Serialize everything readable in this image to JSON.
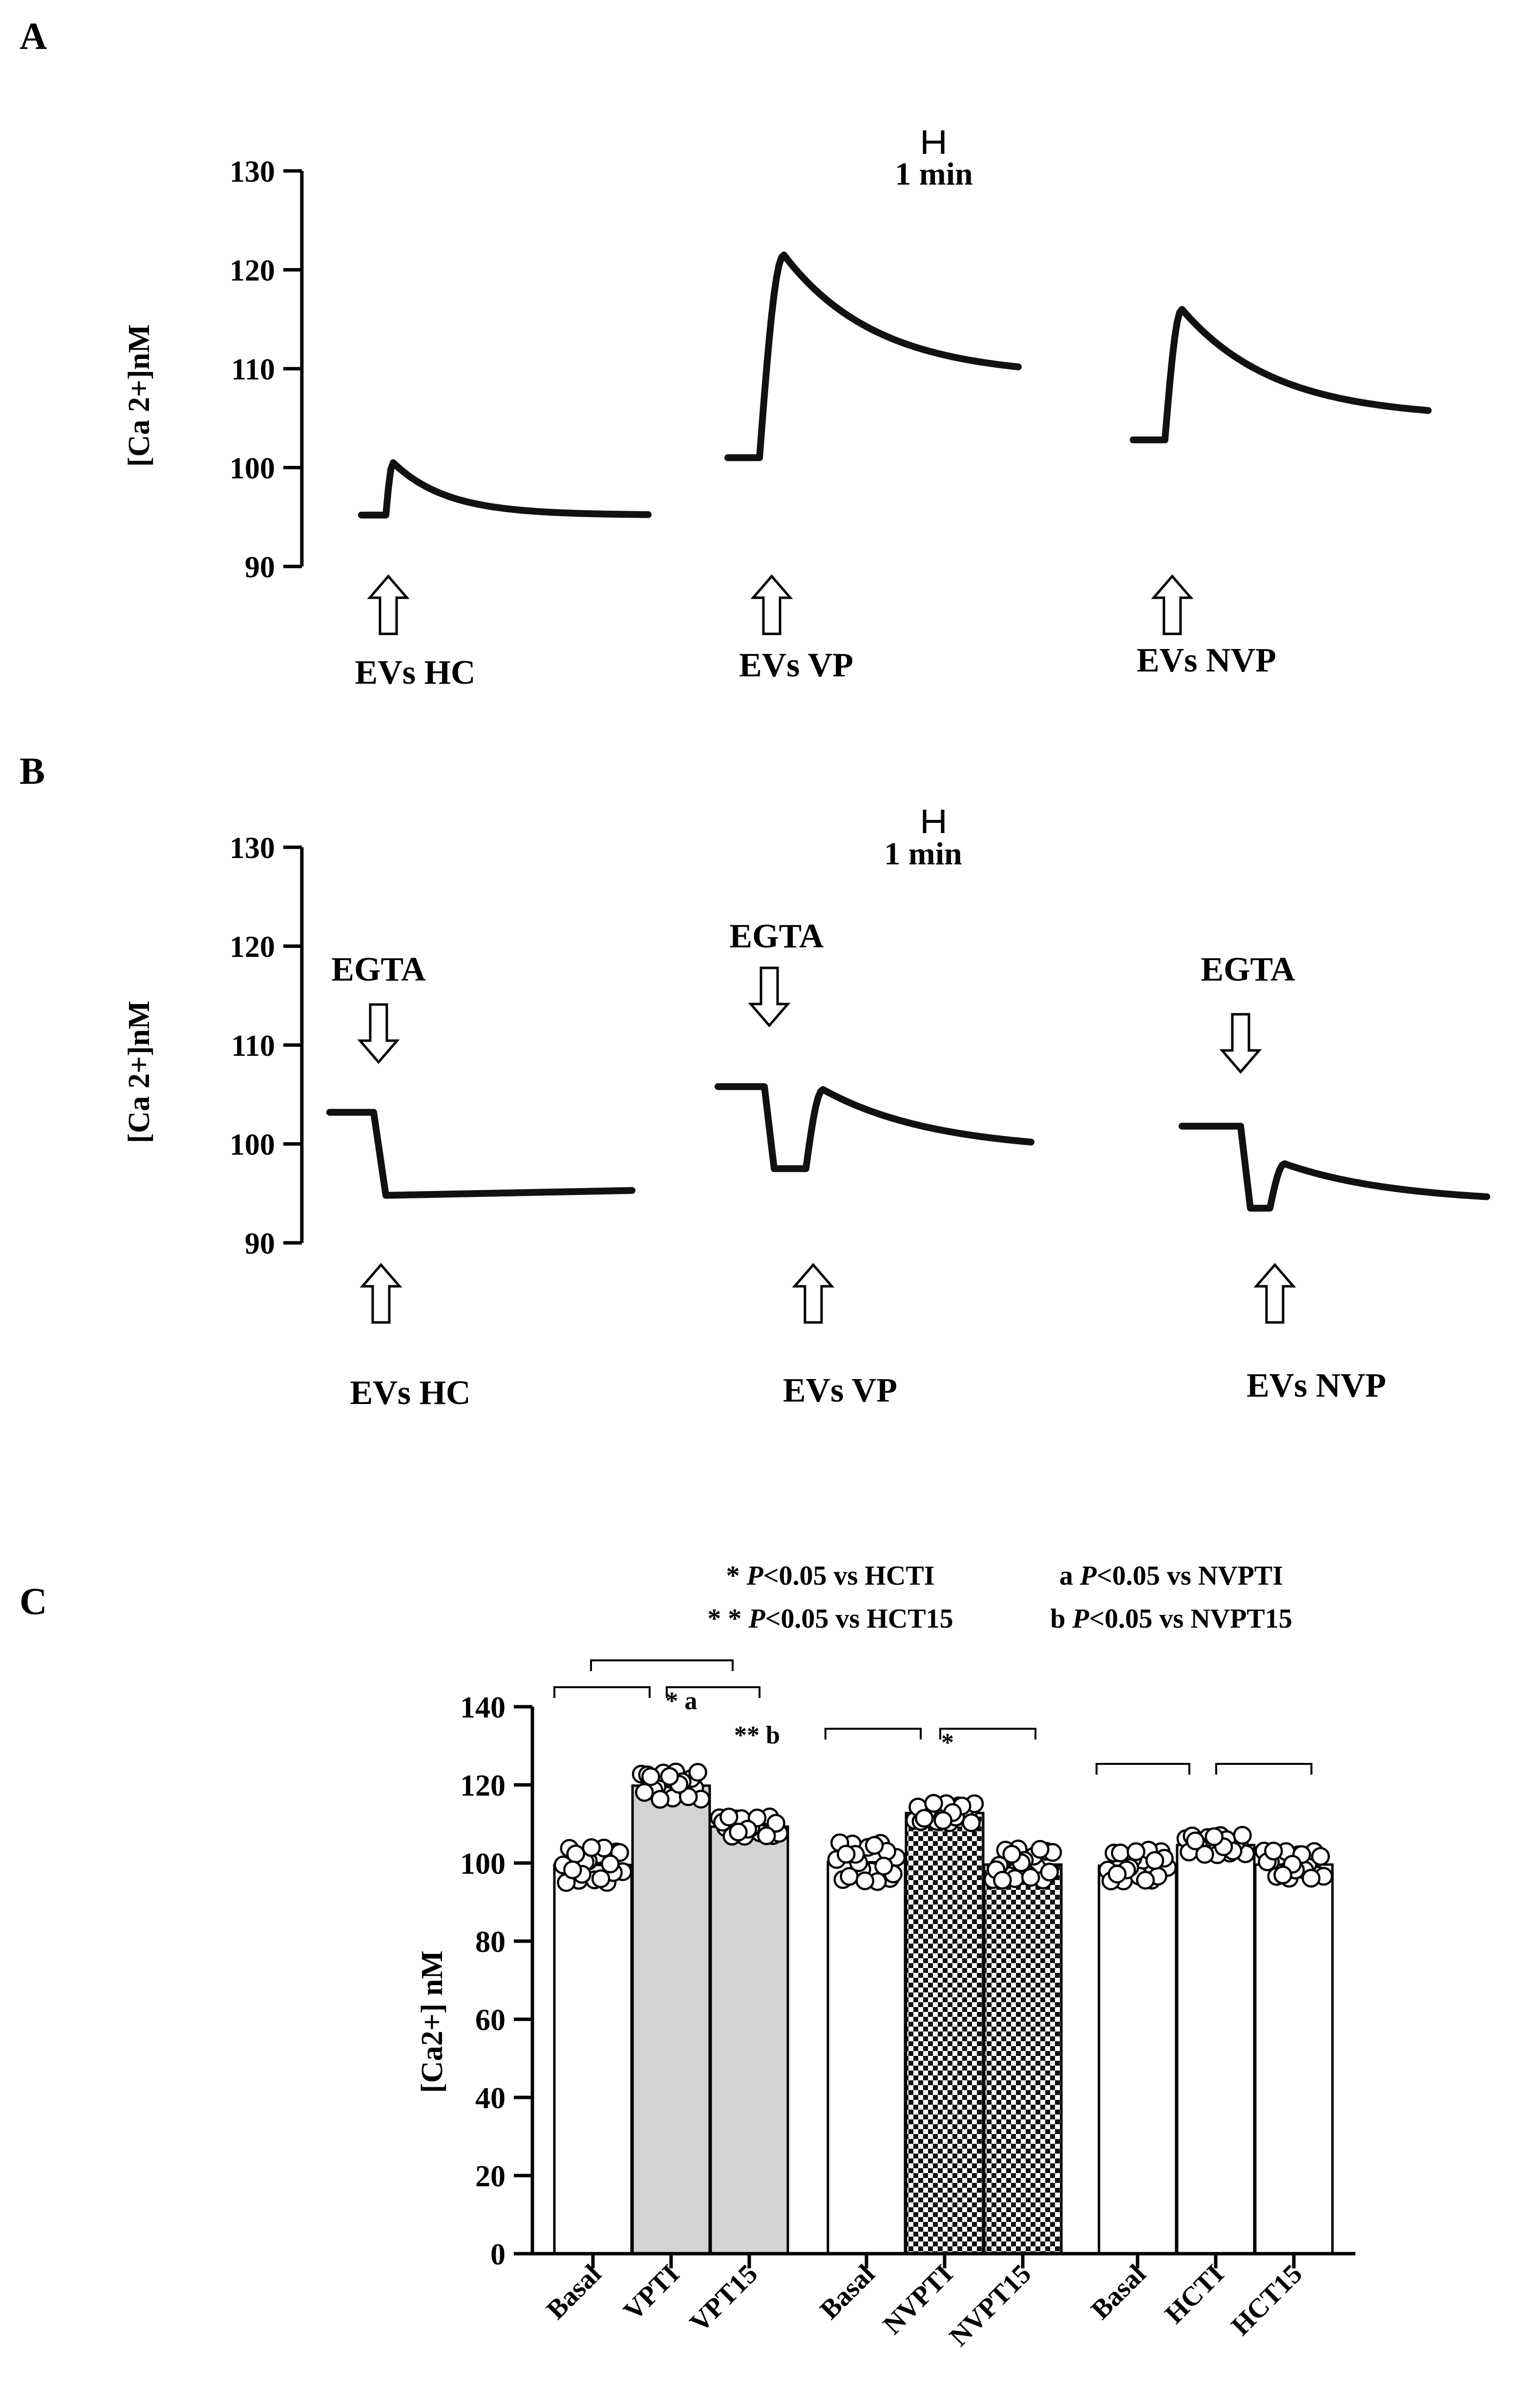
{
  "panels": {
    "a": "A",
    "b": "B",
    "c": "C"
  },
  "chart_data": [
    {
      "panel": "A",
      "type": "line",
      "ylabel": "[Ca 2+]nM",
      "ylim": [
        90,
        130
      ],
      "yticks": [
        90,
        100,
        110,
        120,
        130
      ],
      "scale_bar": "1 min",
      "arrows": [
        {
          "label": "EVs HC",
          "direction": "up"
        },
        {
          "label": "EVs VP",
          "direction": "up"
        },
        {
          "label": "EVs NVP",
          "direction": "up"
        }
      ],
      "traces": [
        {
          "stimulus": "EVs HC",
          "baseline": 95.2,
          "peak": 100.5,
          "final": 95.2
        },
        {
          "stimulus": "EVs VP",
          "baseline": 101,
          "peak": 121.5,
          "final": 109.2
        },
        {
          "stimulus": "EVs NVP",
          "baseline": 102.8,
          "peak": 116,
          "final": 105
        }
      ]
    },
    {
      "panel": "B",
      "type": "line",
      "ylabel": "[Ca 2+]nM",
      "ylim": [
        90,
        130
      ],
      "yticks": [
        90,
        100,
        110,
        120,
        130
      ],
      "scale_bar": "1 min",
      "arrows_top": [
        {
          "label": "EGTA",
          "direction": "down"
        },
        {
          "label": "EGTA",
          "direction": "down"
        },
        {
          "label": "EGTA",
          "direction": "down"
        }
      ],
      "arrows_bottom": [
        {
          "label": "EVs HC",
          "direction": "up"
        },
        {
          "label": "EVs VP",
          "direction": "up"
        },
        {
          "label": "EVs NVP",
          "direction": "up"
        }
      ],
      "traces": [
        {
          "stimulus": "EVs HC",
          "baseline": 103.2,
          "after_egta": 94.8,
          "peak": 94.8,
          "final": 95.3
        },
        {
          "stimulus": "EVs VP",
          "baseline": 105.8,
          "after_egta": 97.5,
          "peak": 105.5,
          "final": 99.2
        },
        {
          "stimulus": "EVs NVP",
          "baseline": 101.8,
          "after_egta": 93.5,
          "peak": 98,
          "final": 94
        }
      ]
    },
    {
      "panel": "C",
      "type": "bar",
      "ylabel": "[Ca2+] nM",
      "ylim": [
        0,
        140
      ],
      "yticks": [
        0,
        20,
        40,
        60,
        80,
        100,
        120,
        140
      ],
      "categories": [
        "Basal",
        "VPTI",
        "VPT15",
        "Basal",
        "NVPTI",
        "NVPT15",
        "Basal",
        "HCTI",
        "HCT15"
      ],
      "values": [
        99.5,
        119.8,
        109.3,
        100.2,
        112.8,
        99.6,
        99.3,
        104.6,
        99.6
      ],
      "spread": [
        4.5,
        3.5,
        2.5,
        5,
        2.5,
        4,
        4,
        2.5,
        3.5
      ],
      "fills": [
        "white",
        "#d3d3d3",
        "#d3d3d3",
        "white",
        "checker",
        "checker",
        "white",
        "white",
        "white"
      ],
      "annotations": [
        "",
        "* a",
        "** b",
        "",
        "*",
        "",
        "",
        "",
        ""
      ],
      "legend": {
        "line1_left": {
          "prefix": "* ",
          "p": "P",
          "suffix": "<0.05 vs HCTI"
        },
        "line2_left": {
          "prefix": "* * ",
          "p": "P",
          "suffix": "<0.05 vs HCT15"
        },
        "line1_right": {
          "prefix": "a ",
          "p": "P",
          "suffix": "<0.05 vs NVPTI"
        },
        "line2_right": {
          "prefix": "b ",
          "p": "P",
          "suffix": "<0.05 vs NVPT15"
        }
      }
    }
  ]
}
